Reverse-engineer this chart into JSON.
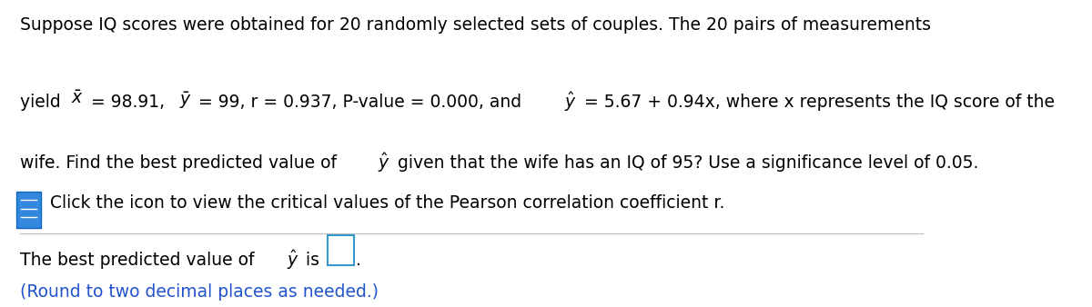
{
  "line1": "Suppose IQ scores were obtained for 20 randomly selected sets of couples. The 20 pairs of measurements",
  "icon_text": "Click the icon to view the critical values of the Pearson correlation coefficient r.",
  "round_note": "(Round to two decimal places as needed.)",
  "round_note_color": "#2255cc",
  "background_color": "#ffffff",
  "text_color": "#000000",
  "font_size": 13.5,
  "divider_color": "#bbbbbb",
  "icon_blue": "#3388dd",
  "icon_dark": "#1166bb",
  "box_color": "#3399cc"
}
